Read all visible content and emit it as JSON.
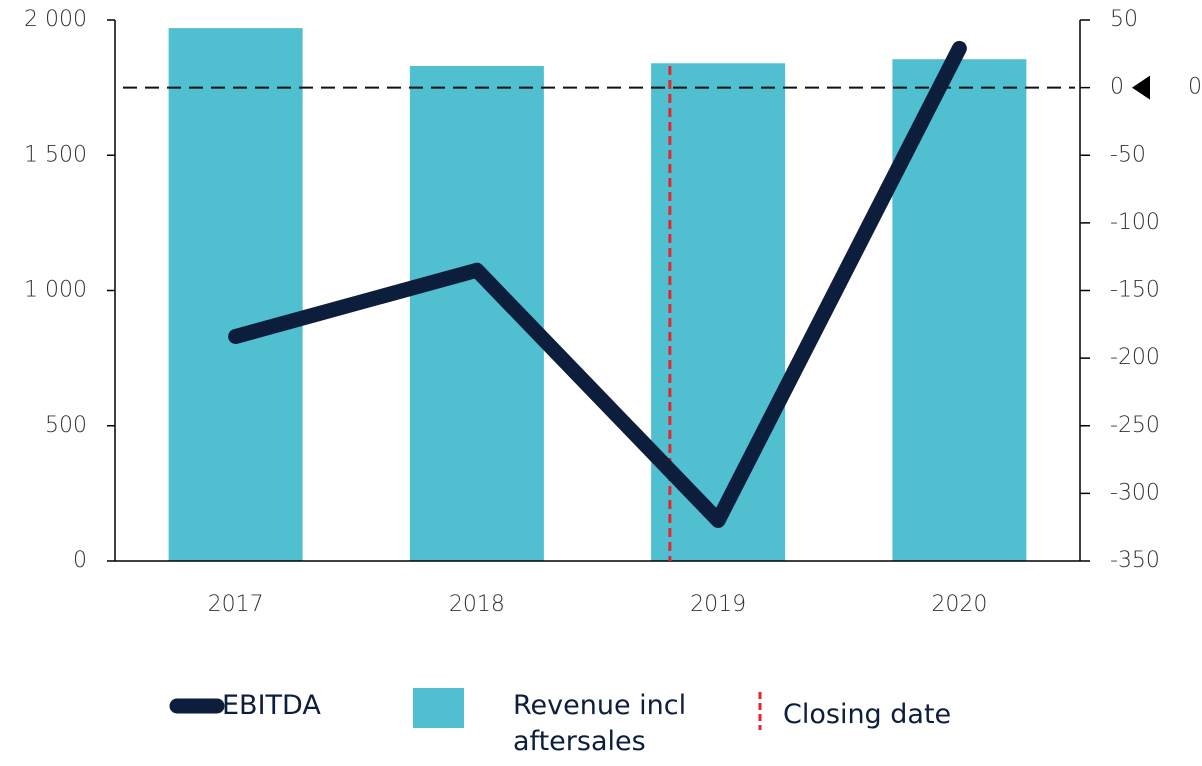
{
  "chart_data": {
    "type": "bar-line",
    "categories": [
      "2017",
      "2018",
      "2019",
      "2020"
    ],
    "series": [
      {
        "name": "Revenue incl aftersales",
        "color": "#50bfd0",
        "type": "bar",
        "values": [
          1970,
          1830,
          1840,
          1855
        ]
      },
      {
        "name": "EBITDA",
        "color": "#0c1e3c",
        "type": "line",
        "axis": "y2",
        "values": [
          -184,
          -135,
          -320,
          29
        ]
      }
    ],
    "ylim": [
      0,
      2000
    ],
    "yticks": [
      0,
      500,
      {
        "value": 1000,
        "label": "1 000"
      },
      {
        "value": 1500,
        "label": "1 500"
      },
      {
        "value": 2000,
        "label": "2 000"
      }
    ],
    "y2lim": [
      -350,
      50
    ],
    "y2ticks": [
      -350,
      -300,
      -250,
      -200,
      -150,
      -100,
      -50,
      0,
      50
    ],
    "reference_line": {
      "axis": "y2",
      "value": 0,
      "label": "0"
    },
    "closing_date": {
      "label": "Closing date",
      "x": 1.8,
      "color": "#e3262f"
    }
  }
}
